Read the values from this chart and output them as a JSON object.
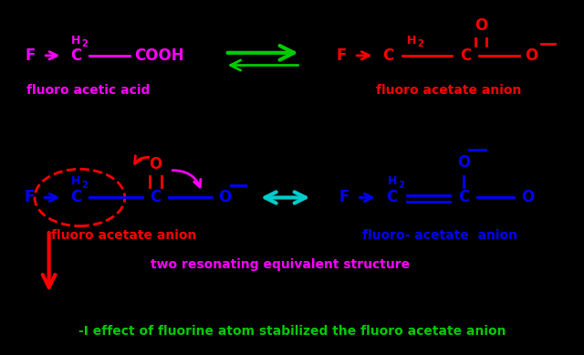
{
  "bg_color": "#000000",
  "fig_width": 6.4,
  "fig_height": 3.89,
  "title_text": "-I effect of fluorine atom stabilized the fluoro acetate anion",
  "title_color": "#00cc00",
  "title_fontsize": 10,
  "label1": "fluoro acetic acid",
  "label1_color": "#ff00ff",
  "label2": "fluoro acetate anion",
  "label2_color": "#ff0000",
  "label3": "fluoro acetate anion",
  "label3_color": "#ff0000",
  "label4": "fluoro- acetate  anion",
  "label4_color": "#0000ff",
  "label5": "two resonating equivalent structure",
  "label5_color": "#ff00ff"
}
